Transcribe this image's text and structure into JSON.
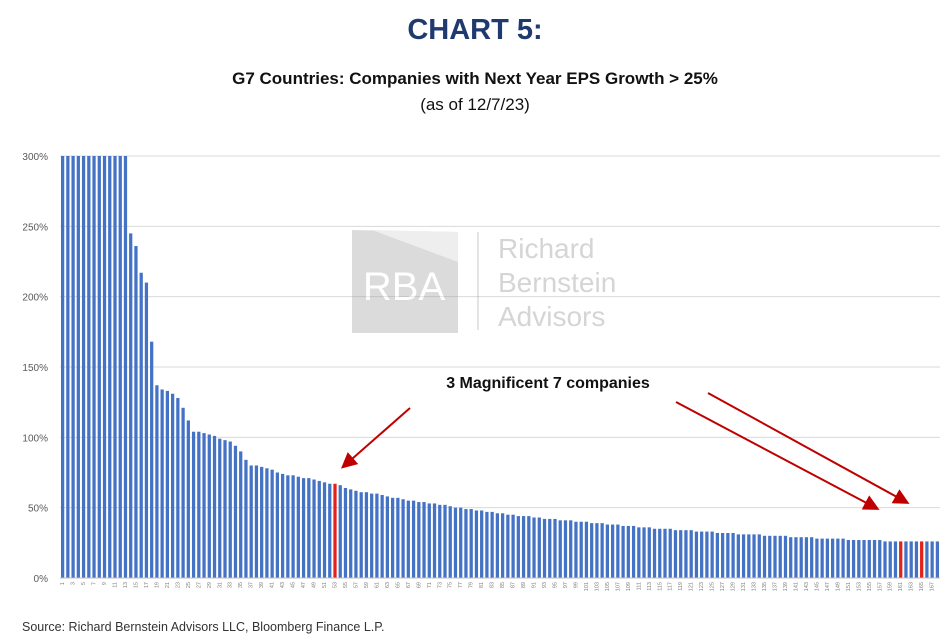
{
  "header": {
    "title": "CHART 5:",
    "subtitle": "G7 Countries: Companies with Next Year EPS Growth > 25%",
    "as_of": "(as of 12/7/23)"
  },
  "watermark": {
    "logo_text": "RBA",
    "lines": [
      "Richard",
      "Bernstein",
      "Advisors"
    ]
  },
  "annotation": "3 Magnificent 7 companies",
  "source": "Source: Richard Bernstein Advisors LLC, Bloomberg Finance L.P.",
  "colors": {
    "bar": "#4472c4",
    "highlight": "#e32119",
    "arrow": "#c00000",
    "grid": "#d9d9d9",
    "title": "#1f3a6e"
  },
  "chart_data": {
    "type": "bar",
    "title": "G7 Countries: Companies with Next Year EPS Growth > 25%",
    "ylim": [
      0,
      300
    ],
    "yticks": [
      0,
      50,
      100,
      150,
      200,
      250,
      300
    ],
    "ytick_format": "%",
    "grid": true,
    "category_count": 168,
    "xtick_every": 2,
    "highlight_indices": [
      52,
      160,
      164
    ],
    "values": [
      300,
      300,
      300,
      300,
      300,
      300,
      300,
      300,
      300,
      300,
      300,
      300,
      300,
      245,
      236,
      217,
      210,
      168,
      137,
      134,
      133,
      131,
      128,
      121,
      112,
      104,
      104,
      103,
      102,
      101,
      99,
      98,
      97,
      94,
      90,
      84,
      80,
      80,
      79,
      78,
      77,
      75,
      74,
      73,
      73,
      72,
      71,
      71,
      70,
      69,
      68,
      67,
      67,
      66,
      64,
      63,
      62,
      61,
      61,
      60,
      60,
      59,
      58,
      57,
      57,
      56,
      55,
      55,
      54,
      54,
      53,
      53,
      52,
      52,
      51,
      50,
      50,
      49,
      49,
      48,
      48,
      47,
      47,
      46,
      46,
      45,
      45,
      44,
      44,
      44,
      43,
      43,
      42,
      42,
      42,
      41,
      41,
      41,
      40,
      40,
      40,
      39,
      39,
      39,
      38,
      38,
      38,
      37,
      37,
      37,
      36,
      36,
      36,
      35,
      35,
      35,
      35,
      34,
      34,
      34,
      34,
      33,
      33,
      33,
      33,
      32,
      32,
      32,
      32,
      31,
      31,
      31,
      31,
      31,
      30,
      30,
      30,
      30,
      30,
      29,
      29,
      29,
      29,
      29,
      28,
      28,
      28,
      28,
      28,
      28,
      27,
      27,
      27,
      27,
      27,
      27,
      27,
      26,
      26,
      26,
      26,
      26,
      26,
      26,
      26,
      26,
      26,
      26
    ]
  }
}
